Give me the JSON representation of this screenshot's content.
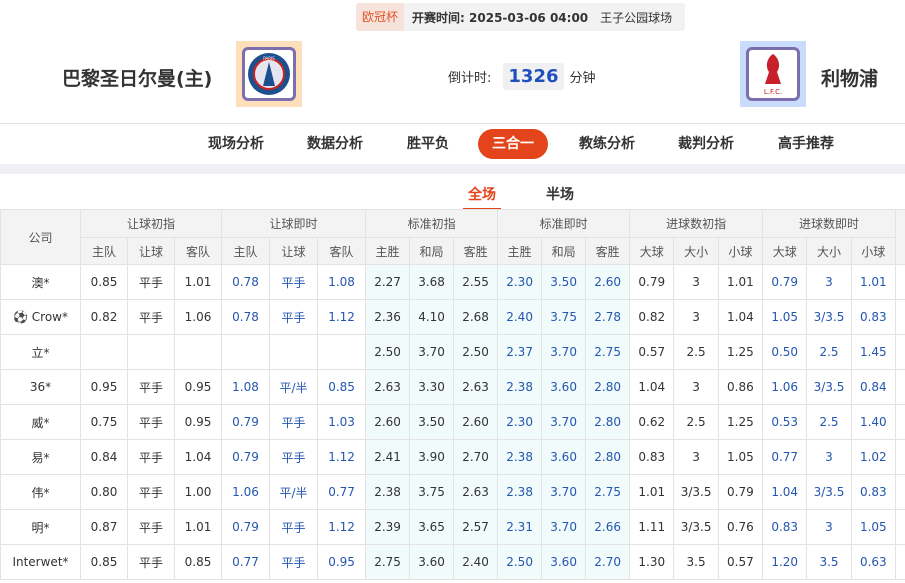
{
  "match": {
    "competition": "欧冠杯",
    "time_label": "开赛时间:",
    "time": "2025-03-06 04:00",
    "venue": "王子公园球场",
    "home": "巴黎圣日尔曼(主)",
    "away": "利物浦",
    "countdown_label": "倒计时:",
    "countdown": "1326",
    "countdown_unit": "分钟",
    "home_logo_text": "PARIS",
    "away_logo_text": "L.F.C."
  },
  "nav": [
    "现场分析",
    "数据分析",
    "胜平负",
    "三合一",
    "教练分析",
    "裁判分析",
    "高手推荐"
  ],
  "nav_active": "三合一",
  "subtabs": [
    "全场",
    "半场"
  ],
  "table": {
    "company_header": "公司",
    "groups": [
      "让球初指",
      "让球即时",
      "标准初指",
      "标准即时",
      "进球数初指",
      "进球数即时"
    ],
    "subheaders": [
      "主队",
      "让球",
      "客队",
      "主队",
      "让球",
      "客队",
      "主胜",
      "和局",
      "客胜",
      "主胜",
      "和局",
      "客胜",
      "大球",
      "大小",
      "小球",
      "大球",
      "大小",
      "小球"
    ],
    "rows": [
      {
        "company": "澳*",
        "v": [
          "0.85",
          "平手",
          "1.01",
          "0.78",
          "平手",
          "1.08",
          "2.27",
          "3.68",
          "2.55",
          "2.30",
          "3.50",
          "2.60",
          "0.79",
          "3",
          "1.01",
          "0.79",
          "3",
          "1.01"
        ]
      },
      {
        "company": "Crow*",
        "icon": "soccer-ball-icon",
        "v": [
          "0.82",
          "平手",
          "1.06",
          "0.78",
          "平手",
          "1.12",
          "2.36",
          "4.10",
          "2.68",
          "2.40",
          "3.75",
          "2.78",
          "0.82",
          "3",
          "1.04",
          "1.05",
          "3/3.5",
          "0.83"
        ]
      },
      {
        "company": "立*",
        "v": [
          "",
          "",
          "",
          "",
          "",
          "",
          "2.50",
          "3.70",
          "2.50",
          "2.37",
          "3.70",
          "2.75",
          "0.57",
          "2.5",
          "1.25",
          "0.50",
          "2.5",
          "1.45"
        ]
      },
      {
        "company": "36*",
        "v": [
          "0.95",
          "平手",
          "0.95",
          "1.08",
          "平/半",
          "0.85",
          "2.63",
          "3.30",
          "2.63",
          "2.38",
          "3.60",
          "2.80",
          "1.04",
          "3",
          "0.86",
          "1.06",
          "3/3.5",
          "0.84"
        ]
      },
      {
        "company": "威*",
        "v": [
          "0.75",
          "平手",
          "0.95",
          "0.79",
          "平手",
          "1.03",
          "2.60",
          "3.50",
          "2.60",
          "2.30",
          "3.70",
          "2.80",
          "0.62",
          "2.5",
          "1.25",
          "0.53",
          "2.5",
          "1.40"
        ]
      },
      {
        "company": "易*",
        "v": [
          "0.84",
          "平手",
          "1.04",
          "0.79",
          "平手",
          "1.12",
          "2.41",
          "3.90",
          "2.70",
          "2.38",
          "3.60",
          "2.80",
          "0.83",
          "3",
          "1.05",
          "0.77",
          "3",
          "1.02"
        ]
      },
      {
        "company": "伟*",
        "v": [
          "0.80",
          "平手",
          "1.00",
          "1.06",
          "平/半",
          "0.77",
          "2.38",
          "3.75",
          "2.63",
          "2.38",
          "3.70",
          "2.75",
          "1.01",
          "3/3.5",
          "0.79",
          "1.04",
          "3/3.5",
          "0.83"
        ]
      },
      {
        "company": "明*",
        "v": [
          "0.87",
          "平手",
          "1.01",
          "0.79",
          "平手",
          "1.12",
          "2.39",
          "3.65",
          "2.57",
          "2.31",
          "3.70",
          "2.66",
          "1.11",
          "3/3.5",
          "0.76",
          "0.83",
          "3",
          "1.05"
        ]
      },
      {
        "company": "Interwet*",
        "v": [
          "0.85",
          "平手",
          "0.85",
          "0.77",
          "平手",
          "0.95",
          "2.75",
          "3.60",
          "2.40",
          "2.50",
          "3.60",
          "2.70",
          "1.30",
          "3.5",
          "0.57",
          "1.20",
          "3.5",
          "0.63"
        ]
      }
    ]
  },
  "colors": {
    "accent": "#e3441b",
    "live_value": "#2456b0",
    "countdown": "#1f4fbf"
  }
}
